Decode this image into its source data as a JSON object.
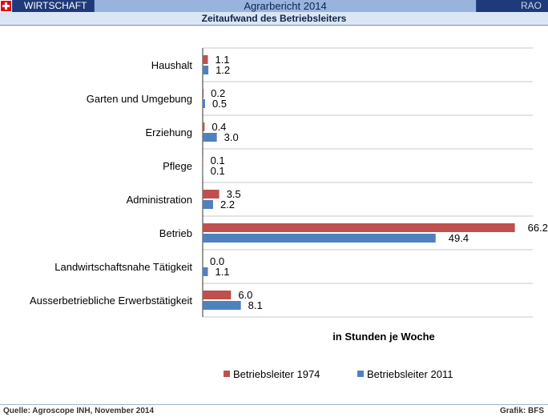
{
  "header": {
    "section": "WIRTSCHAFT",
    "report_title": "Agrarbericht 2014",
    "badge": "RAO",
    "subtitle": "Zeitaufwand des Betriebsleiters"
  },
  "footer": {
    "source": "Quelle: Agroscope INH, November 2014",
    "grafik": "Grafik: BFS"
  },
  "colors": {
    "series_1974": "#c0504d",
    "series_2011": "#4f81bd"
  },
  "chart_data": {
    "type": "bar",
    "orientation": "horizontal",
    "title": "Zeitaufwand des Betriebsleiters",
    "xlabel": "in Stunden je Woche",
    "ylabel": "",
    "categories": [
      "Haushalt",
      "Garten und Umgebung",
      "Erziehung",
      "Pflege",
      "Administration",
      "Betrieb",
      "Landwirtschaftsnahe Tätigkeit",
      "Ausserbetriebliche Erwerbstätigkeit"
    ],
    "series": [
      {
        "name": "Betriebsleiter 1974",
        "values": [
          1.1,
          0.2,
          0.4,
          0.1,
          3.5,
          66.2,
          0.0,
          6.0
        ],
        "labels": [
          "1.1",
          "0.2",
          "0.4",
          "0.1",
          "3.5",
          "66.2",
          "0.0",
          "6.0"
        ]
      },
      {
        "name": "Betriebsleiter 2011",
        "values": [
          1.2,
          0.5,
          3.0,
          0.1,
          2.2,
          49.4,
          1.1,
          8.1
        ],
        "labels": [
          "1.2",
          "0.5",
          "3.0",
          "0.1",
          "2.2",
          "49.4",
          "1.1",
          "8.1"
        ]
      }
    ],
    "xlim": [
      0,
      70
    ],
    "grid": "horizontal separators",
    "legend": "bottom"
  }
}
